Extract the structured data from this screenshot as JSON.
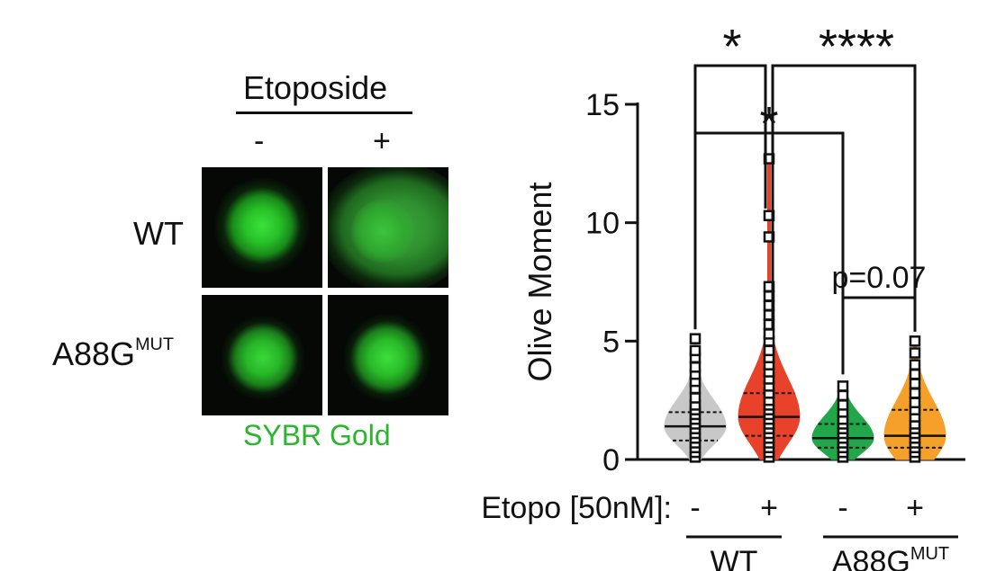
{
  "left_panel": {
    "treatment_title": "Etoposide",
    "col_minus": "-",
    "col_plus": "+",
    "row_wt": "WT",
    "row_mut_base": "A88G",
    "row_mut_sup": "MUT",
    "stain_caption": "SYBR Gold",
    "stain_color": "#2bb52b"
  },
  "chart_data": {
    "type": "violin",
    "ylabel": "Olive Moment",
    "ylim": [
      0,
      15
    ],
    "y_ticks": [
      "0",
      "5",
      "10",
      "15"
    ],
    "x_row_label": "Etopo [50nM]:",
    "x_ticks": [
      "-",
      "+",
      "-",
      "+"
    ],
    "groups": [
      {
        "base": "WT",
        "sup": ""
      },
      {
        "base": "A88G",
        "sup": "MUT"
      }
    ],
    "series": [
      {
        "color": "#c8c8c8",
        "median": 1.4,
        "q1": 0.8,
        "q3": 2.0,
        "max": 5.1,
        "points": [
          0.1,
          0.3,
          0.5,
          0.7,
          0.9,
          1.1,
          1.3,
          1.5,
          1.7,
          1.9,
          2.1,
          2.3,
          2.6,
          3.0,
          3.3,
          3.6,
          3.9,
          4.3,
          4.6,
          5.1
        ]
      },
      {
        "color": "#e8432a",
        "median": 1.8,
        "q1": 1.0,
        "q3": 2.8,
        "max": 12.7,
        "points": [
          0.1,
          0.3,
          0.5,
          0.7,
          0.9,
          1.1,
          1.3,
          1.5,
          1.7,
          1.9,
          2.1,
          2.3,
          2.5,
          2.8,
          3.1,
          3.4,
          3.7,
          4.0,
          4.3,
          4.6,
          5.0,
          5.3,
          5.7,
          6.1,
          6.5,
          6.9,
          7.3,
          10.3,
          9.4,
          12.7
        ]
      },
      {
        "color": "#22a64a",
        "median": 0.9,
        "q1": 0.5,
        "q3": 1.5,
        "max": 3.1,
        "points": [
          0.1,
          0.3,
          0.5,
          0.7,
          0.9,
          1.1,
          1.3,
          1.5,
          1.7,
          2.0,
          2.3,
          2.7,
          3.1
        ]
      },
      {
        "color": "#f5a02a",
        "median": 1.0,
        "q1": 0.5,
        "q3": 2.1,
        "max": 5.0,
        "points": [
          0.1,
          0.3,
          0.5,
          0.7,
          0.9,
          1.1,
          1.3,
          1.5,
          1.8,
          2.1,
          2.4,
          2.8,
          3.2,
          3.6,
          4.0,
          4.5,
          5.0
        ]
      }
    ],
    "significance": [
      {
        "from": 0,
        "to": 1,
        "label": "*"
      },
      {
        "from": 1,
        "to": 3,
        "label": "****"
      },
      {
        "from": 0,
        "to": 2,
        "label": "*"
      },
      {
        "from": 2,
        "to": 3,
        "label": "p=0.07"
      }
    ]
  }
}
